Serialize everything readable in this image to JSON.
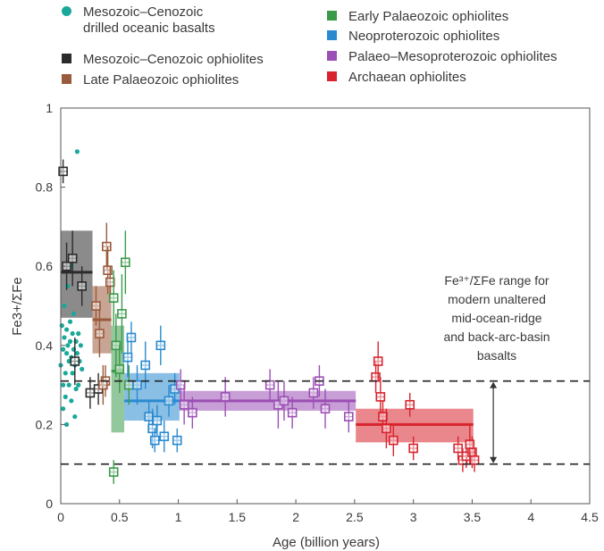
{
  "chart_data": {
    "type": "scatter",
    "title": "",
    "xlabel": "Age (billion years)",
    "ylabel": "Fe3+/ΣFe",
    "xlim": [
      0,
      4.5
    ],
    "ylim": [
      0,
      1
    ],
    "xticks": [
      "0",
      "0.5",
      "1",
      "1.5",
      "2",
      "2.5",
      "3",
      "3.5",
      "4",
      "4.5"
    ],
    "xtick_values": [
      0,
      0.5,
      1,
      1.5,
      2,
      2.5,
      3,
      3.5,
      4,
      4.5
    ],
    "yticks": [
      "0",
      "0.2",
      "0.4",
      "0.6",
      "0.8",
      "1"
    ],
    "ytick_values": [
      0,
      0.2,
      0.4,
      0.6,
      0.8,
      1
    ],
    "grid": false,
    "legend_position": "top",
    "reference_range": {
      "low": 0.1,
      "high": 0.31,
      "label_lines": [
        "Fe³⁺/ΣFe range for",
        "modern unaltered",
        "mid-ocean-ridge",
        "and back-arc-basin",
        "basalts"
      ]
    },
    "series": [
      {
        "name": "Mesozoic–Cenozoic drilled oceanic basalts",
        "color": "#19a89a",
        "marker": "dot",
        "points": [
          [
            0.0,
            0.35
          ],
          [
            0.01,
            0.45
          ],
          [
            0.02,
            0.39
          ],
          [
            0.02,
            0.3
          ],
          [
            0.03,
            0.42
          ],
          [
            0.03,
            0.5
          ],
          [
            0.04,
            0.33
          ],
          [
            0.04,
            0.27
          ],
          [
            0.05,
            0.38
          ],
          [
            0.05,
            0.44
          ],
          [
            0.06,
            0.4
          ],
          [
            0.06,
            0.55
          ],
          [
            0.07,
            0.36
          ],
          [
            0.07,
            0.3
          ],
          [
            0.08,
            0.46
          ],
          [
            0.08,
            0.41
          ],
          [
            0.09,
            0.37
          ],
          [
            0.09,
            0.26
          ],
          [
            0.1,
            0.43
          ],
          [
            0.1,
            0.33
          ],
          [
            0.11,
            0.39
          ],
          [
            0.11,
            0.48
          ],
          [
            0.12,
            0.35
          ],
          [
            0.12,
            0.22
          ],
          [
            0.13,
            0.41
          ],
          [
            0.14,
            0.38
          ],
          [
            0.15,
            0.43
          ],
          [
            0.15,
            0.3
          ],
          [
            0.16,
            0.36
          ],
          [
            0.17,
            0.4
          ],
          [
            0.18,
            0.34
          ],
          [
            0.05,
            0.2
          ],
          [
            0.09,
            0.6
          ],
          [
            0.14,
            0.89
          ],
          [
            0.02,
            0.24
          ],
          [
            0.13,
            0.29
          ]
        ]
      },
      {
        "name": "Mesozoic–Cenozoic ophiolites",
        "color": "#2b2b2b",
        "marker": "square",
        "points": [
          [
            0.02,
            0.84
          ],
          [
            0.05,
            0.6
          ],
          [
            0.1,
            0.62
          ],
          [
            0.12,
            0.36
          ],
          [
            0.18,
            0.55
          ],
          [
            0.25,
            0.28
          ],
          [
            0.32,
            0.29
          ]
        ],
        "yerr": [
          0.03,
          0.06,
          0.07,
          0.06,
          0.05,
          0.04,
          0.04
        ],
        "box": {
          "x": [
            0.0,
            0.27
          ],
          "y": [
            0.47,
            0.69
          ],
          "mean": 0.585
        }
      },
      {
        "name": "Late Palaeozoic ophiolites",
        "color": "#9a5a3c",
        "marker": "square",
        "points": [
          [
            0.3,
            0.5
          ],
          [
            0.33,
            0.43
          ],
          [
            0.38,
            0.31
          ],
          [
            0.39,
            0.65
          ],
          [
            0.4,
            0.59
          ],
          [
            0.36,
            0.3
          ],
          [
            0.42,
            0.56
          ]
        ],
        "yerr": [
          0.05,
          0.06,
          0.04,
          0.06,
          0.06,
          0.05,
          0.04
        ],
        "box": {
          "x": [
            0.27,
            0.43
          ],
          "y": [
            0.38,
            0.55
          ],
          "mean": 0.465
        }
      },
      {
        "name": "Early Palaeozoic ophiolites",
        "color": "#3a9a4a",
        "marker": "square",
        "points": [
          [
            0.45,
            0.52
          ],
          [
            0.47,
            0.4
          ],
          [
            0.5,
            0.34
          ],
          [
            0.52,
            0.48
          ],
          [
            0.55,
            0.61
          ],
          [
            0.58,
            0.3
          ],
          [
            0.45,
            0.08
          ]
        ],
        "yerr": [
          0.07,
          0.08,
          0.06,
          0.1,
          0.08,
          0.05,
          0.03
        ],
        "box": {
          "x": [
            0.43,
            0.54
          ],
          "y": [
            0.18,
            0.45
          ],
          "mean": 0.335
        }
      },
      {
        "name": "Neoproterozoic ophiolites",
        "color": "#2a8ad0",
        "marker": "square",
        "points": [
          [
            0.57,
            0.37
          ],
          [
            0.6,
            0.42
          ],
          [
            0.65,
            0.3
          ],
          [
            0.72,
            0.35
          ],
          [
            0.75,
            0.22
          ],
          [
            0.78,
            0.19
          ],
          [
            0.8,
            0.16
          ],
          [
            0.82,
            0.21
          ],
          [
            0.85,
            0.4
          ],
          [
            0.88,
            0.17
          ],
          [
            0.92,
            0.26
          ],
          [
            0.97,
            0.29
          ],
          [
            0.99,
            0.16
          ]
        ],
        "yerr": [
          0.05,
          0.04,
          0.05,
          0.06,
          0.04,
          0.05,
          0.03,
          0.04,
          0.05,
          0.04,
          0.04,
          0.04,
          0.03
        ],
        "box": {
          "x": [
            0.54,
            1.01
          ],
          "y": [
            0.21,
            0.33
          ],
          "mean": 0.26
        }
      },
      {
        "name": "Palaeo–Mesoproterozoic ophiolites",
        "color": "#9b4fb4",
        "marker": "square",
        "points": [
          [
            1.02,
            0.3
          ],
          [
            1.05,
            0.25
          ],
          [
            1.12,
            0.23
          ],
          [
            1.4,
            0.27
          ],
          [
            1.78,
            0.3
          ],
          [
            1.85,
            0.25
          ],
          [
            1.9,
            0.26
          ],
          [
            1.97,
            0.23
          ],
          [
            2.15,
            0.28
          ],
          [
            2.2,
            0.31
          ],
          [
            2.25,
            0.24
          ],
          [
            2.45,
            0.22
          ]
        ],
        "yerr": [
          0.04,
          0.05,
          0.04,
          0.05,
          0.04,
          0.06,
          0.05,
          0.04,
          0.04,
          0.04,
          0.05,
          0.04
        ],
        "box": {
          "x": [
            1.01,
            2.51
          ],
          "y": [
            0.235,
            0.285
          ],
          "mean": 0.26
        }
      },
      {
        "name": "Archaean ophiolites",
        "color": "#d8242e",
        "marker": "square",
        "points": [
          [
            2.68,
            0.32
          ],
          [
            2.7,
            0.36
          ],
          [
            2.72,
            0.27
          ],
          [
            2.74,
            0.22
          ],
          [
            2.77,
            0.19
          ],
          [
            2.83,
            0.16
          ],
          [
            2.97,
            0.25
          ],
          [
            3.0,
            0.14
          ],
          [
            3.38,
            0.14
          ],
          [
            3.42,
            0.11
          ],
          [
            3.45,
            0.12
          ],
          [
            3.5,
            0.13
          ],
          [
            3.52,
            0.11
          ],
          [
            3.48,
            0.15
          ]
        ],
        "yerr": [
          0.04,
          0.05,
          0.05,
          0.04,
          0.05,
          0.04,
          0.03,
          0.03,
          0.03,
          0.03,
          0.03,
          0.04,
          0.03,
          0.05
        ],
        "box": {
          "x": [
            2.51,
            3.51
          ],
          "y": [
            0.155,
            0.24
          ],
          "mean": 0.2
        }
      }
    ]
  }
}
